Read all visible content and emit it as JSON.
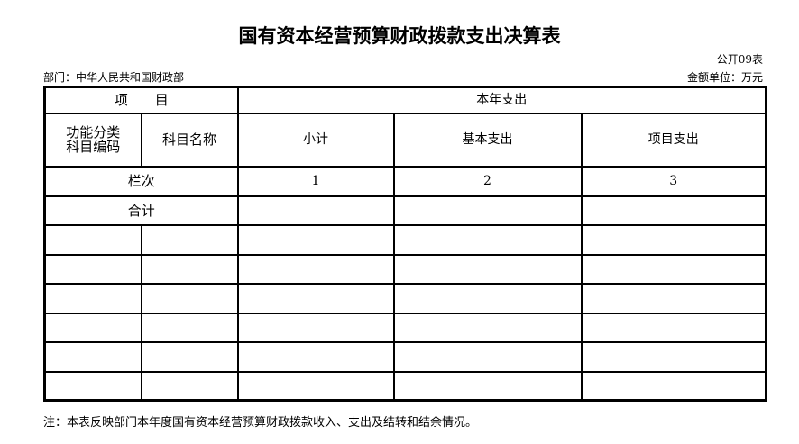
{
  "title": "国有资本经营预算财政拨款支出决算表",
  "form_code": "公开09表",
  "department": "部门：中华人民共和国财政部",
  "unit": "金额单位：万元",
  "table": {
    "item_header": "项　　目",
    "current_year_header": "本年支出",
    "func_code_header_1": "功能分类",
    "func_code_header_2": "科目编码",
    "subject_name_header": "科目名称",
    "columns": [
      "小计",
      "基本支出",
      "项目支出"
    ],
    "column_index_label": "栏次",
    "column_numbers": [
      "1",
      "2",
      "3"
    ],
    "total_label": "合计"
  },
  "note": "注：本表反映部门本年度国有资本经营预算财政拨款收入、支出及结转和结余情况。"
}
